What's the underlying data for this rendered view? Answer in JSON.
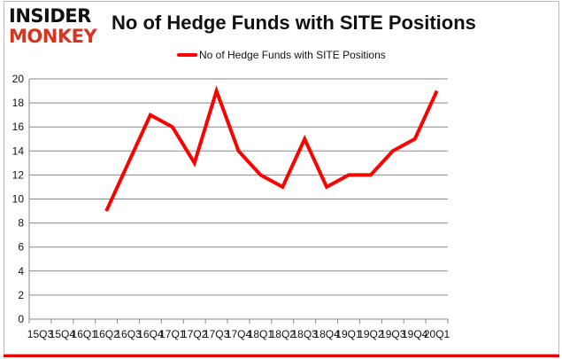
{
  "logo": {
    "line1": "INSIDER",
    "line2": "MONKEY"
  },
  "chart_data": {
    "type": "line",
    "title": "No of Hedge Funds with SITE Positions",
    "xlabel": "",
    "ylabel": "",
    "categories": [
      "15Q3",
      "15Q4",
      "16Q1",
      "16Q2",
      "16Q3",
      "16Q4",
      "17Q1",
      "17Q2",
      "17Q3",
      "17Q4",
      "18Q1",
      "18Q2",
      "18Q3",
      "18Q4",
      "19Q1",
      "19Q2",
      "19Q3",
      "19Q4",
      "20Q1"
    ],
    "series": [
      {
        "name": "No of Hedge Funds with SITE Positions",
        "color": "#ff0000",
        "values": [
          null,
          null,
          null,
          9,
          13,
          17,
          16,
          13,
          19,
          14,
          12,
          11,
          15,
          11,
          12,
          12,
          14,
          15,
          19
        ]
      }
    ],
    "ylim": [
      0,
      20
    ],
    "yticks": [
      0,
      2,
      4,
      6,
      8,
      10,
      12,
      14,
      16,
      18,
      20
    ],
    "grid": true,
    "legend_position": "top"
  }
}
